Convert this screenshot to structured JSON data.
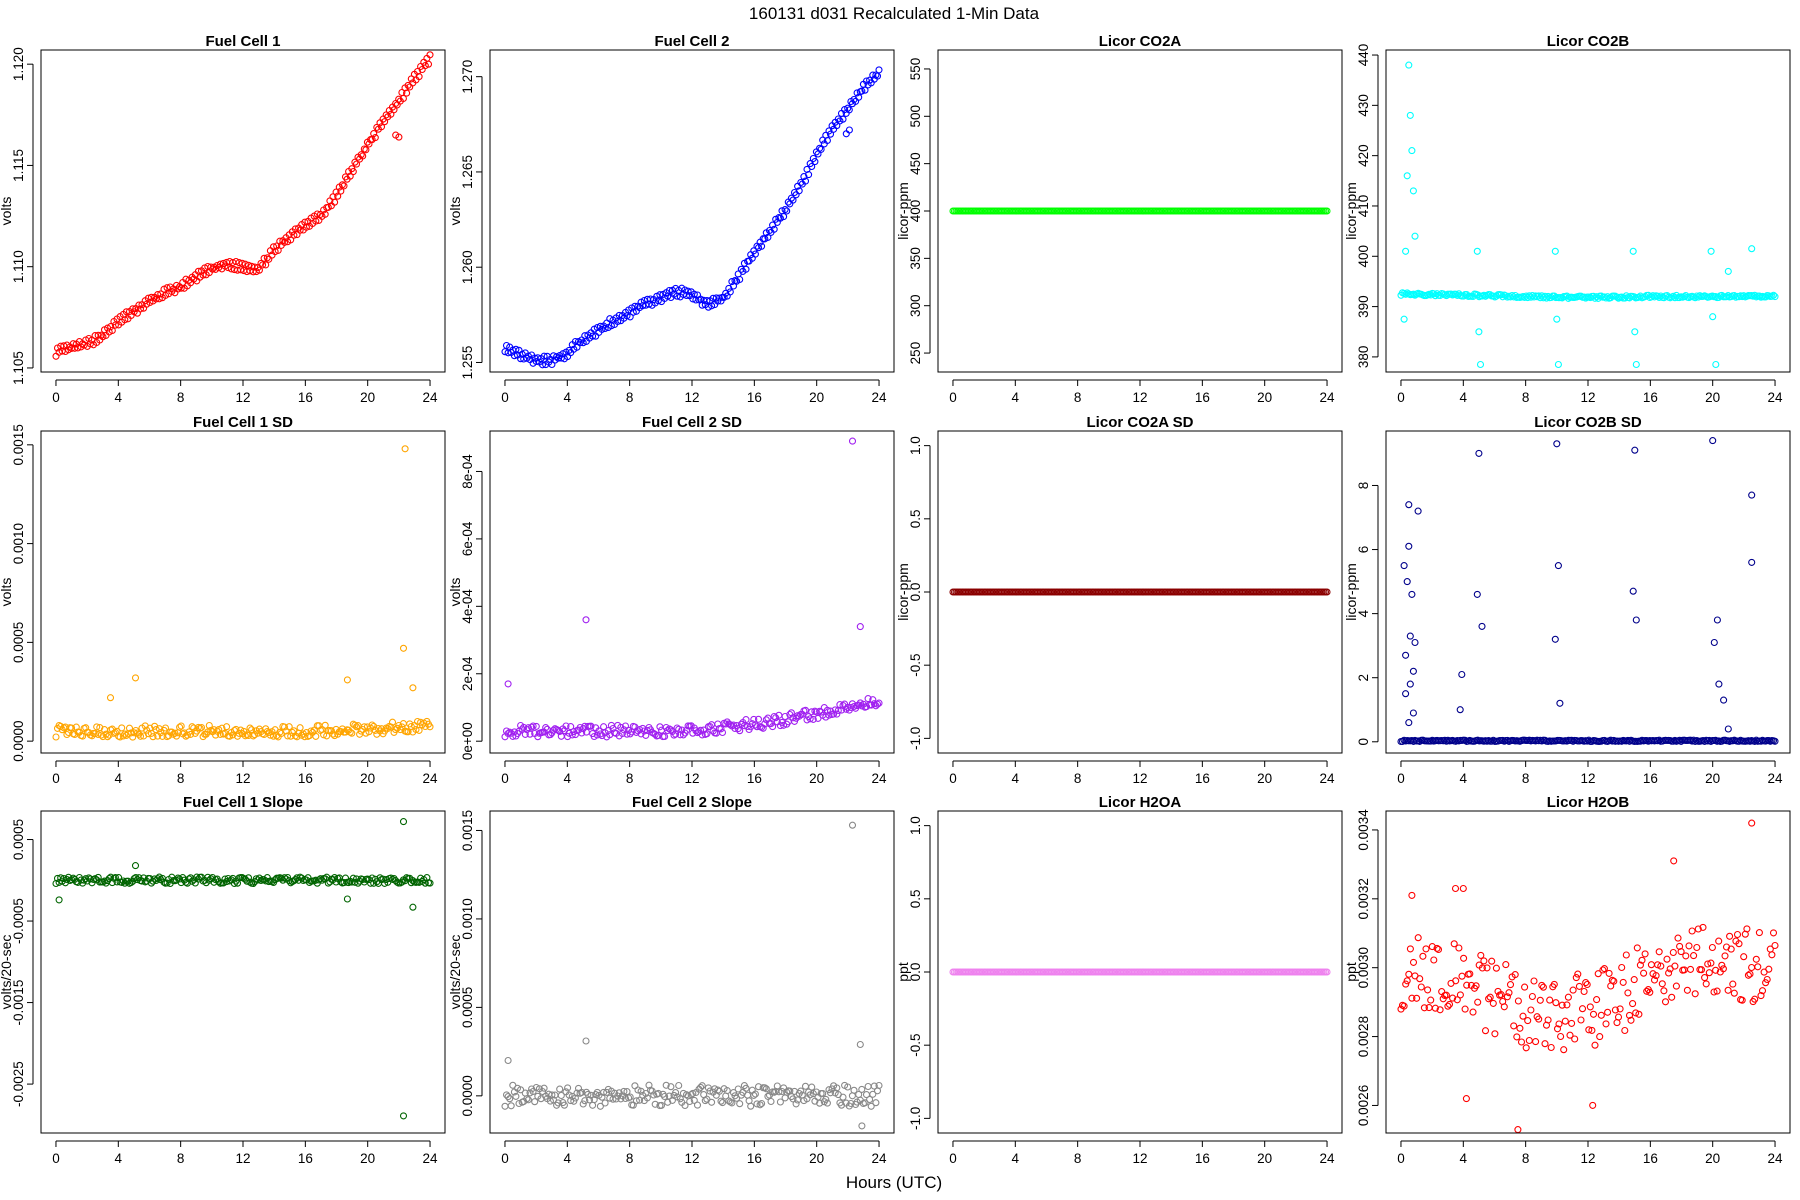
{
  "figure": {
    "suptitle": "160131   d031   Recalculated 1-Min Data",
    "xlabel": "Hours (UTC)"
  },
  "chart_data": [
    {
      "type": "scatter",
      "id": "fc1",
      "title": "Fuel Cell 1",
      "ylabel": "volts",
      "color": "#ff0000",
      "xlim": [
        -0.96,
        24.96
      ],
      "ylim": [
        1.1048,
        1.1207
      ],
      "xticks": [
        0,
        4,
        8,
        12,
        16,
        20,
        24
      ],
      "yticks": [
        1.105,
        1.11,
        1.115,
        1.12
      ],
      "ytick_labels": [
        "1.105",
        "1.110",
        "1.115",
        "1.120"
      ],
      "series": [
        {
          "x": [
            0,
            1,
            2,
            3,
            4,
            5,
            6,
            7,
            8,
            9,
            10,
            11,
            12,
            13,
            14,
            15,
            16,
            17,
            18,
            19,
            20,
            21,
            22,
            23,
            24
          ],
          "y": [
            1.1058,
            1.106,
            1.1062,
            1.1066,
            1.1073,
            1.1078,
            1.1083,
            1.1087,
            1.109,
            1.1095,
            1.1099,
            1.1101,
            1.11,
            1.1099,
            1.1108,
            1.1115,
            1.1121,
            1.1125,
            1.1135,
            1.1148,
            1.116,
            1.1172,
            1.1182,
            1.1193,
            1.1203
          ]
        }
      ],
      "markers": [
        {
          "x": 21.8,
          "y": 1.1165
        },
        {
          "x": 22.0,
          "y": 1.1164
        }
      ]
    },
    {
      "type": "scatter",
      "id": "fc2",
      "title": "Fuel Cell 2",
      "ylabel": "volts",
      "color": "#0000ff",
      "xlim": [
        -0.96,
        24.96
      ],
      "ylim": [
        1.2545,
        1.2714
      ],
      "xticks": [
        0,
        4,
        8,
        12,
        16,
        20,
        24
      ],
      "yticks": [
        1.255,
        1.26,
        1.265,
        1.27
      ],
      "ytick_labels": [
        "1.255",
        "1.260",
        "1.265",
        "1.270"
      ],
      "series": [
        {
          "x": [
            0,
            1,
            2,
            3,
            4,
            5,
            6,
            7,
            8,
            9,
            10,
            11,
            12,
            13,
            14,
            15,
            16,
            17,
            18,
            19,
            20,
            21,
            22,
            23,
            24
          ],
          "y": [
            1.2558,
            1.2554,
            1.2551,
            1.2551,
            1.2555,
            1.2562,
            1.2567,
            1.2572,
            1.2576,
            1.2581,
            1.2584,
            1.2587,
            1.2586,
            1.258,
            1.2584,
            1.2595,
            1.2608,
            1.2619,
            1.263,
            1.2643,
            1.2659,
            1.2673,
            1.2683,
            1.2694,
            1.2702
          ]
        }
      ],
      "markers": [
        {
          "x": 21.9,
          "y": 1.267
        },
        {
          "x": 22.1,
          "y": 1.2672
        }
      ]
    },
    {
      "type": "scatter",
      "id": "co2a",
      "title": "Licor CO2A",
      "ylabel": "licor-ppm",
      "color": "#00ff00",
      "xlim": [
        -0.96,
        24.96
      ],
      "ylim": [
        230,
        570
      ],
      "xticks": [
        0,
        4,
        8,
        12,
        16,
        20,
        24
      ],
      "yticks": [
        250,
        300,
        350,
        400,
        450,
        500,
        550
      ],
      "ytick_labels": [
        "250",
        "300",
        "350",
        "400",
        "450",
        "500",
        "550"
      ],
      "series": [
        {
          "x": [
            0,
            24
          ],
          "y": [
            400,
            400
          ]
        }
      ]
    },
    {
      "type": "scatter",
      "id": "co2b",
      "title": "Licor CO2B",
      "ylabel": "licor-ppm",
      "color": "#00ffff",
      "xlim": [
        -0.96,
        24.96
      ],
      "ylim": [
        377,
        441
      ],
      "xticks": [
        0,
        4,
        8,
        12,
        16,
        20,
        24
      ],
      "yticks": [
        380,
        390,
        400,
        410,
        420,
        430,
        440
      ],
      "ytick_labels": [
        "380",
        "390",
        "400",
        "410",
        "420",
        "430",
        "440"
      ],
      "series": [
        {
          "x": [
            0,
            4,
            8,
            12,
            16,
            20,
            24
          ],
          "y": [
            392.5,
            392.3,
            392.0,
            391.8,
            392.0,
            392.0,
            392.0
          ]
        }
      ],
      "markers": [
        {
          "x": 0.5,
          "y": 438
        },
        {
          "x": 0.6,
          "y": 428
        },
        {
          "x": 0.7,
          "y": 421
        },
        {
          "x": 0.4,
          "y": 416
        },
        {
          "x": 0.8,
          "y": 413
        },
        {
          "x": 0.3,
          "y": 401
        },
        {
          "x": 0.2,
          "y": 387.5
        },
        {
          "x": 0.9,
          "y": 404
        },
        {
          "x": 4.9,
          "y": 401
        },
        {
          "x": 5.0,
          "y": 385
        },
        {
          "x": 5.1,
          "y": 378.5
        },
        {
          "x": 9.9,
          "y": 401
        },
        {
          "x": 10.0,
          "y": 387.5
        },
        {
          "x": 10.1,
          "y": 378.5
        },
        {
          "x": 14.9,
          "y": 401
        },
        {
          "x": 15.0,
          "y": 385
        },
        {
          "x": 15.1,
          "y": 378.5
        },
        {
          "x": 19.9,
          "y": 401
        },
        {
          "x": 20.0,
          "y": 388
        },
        {
          "x": 20.2,
          "y": 378.5
        },
        {
          "x": 21.0,
          "y": 397
        },
        {
          "x": 22.5,
          "y": 401.5
        }
      ]
    },
    {
      "type": "scatter",
      "id": "fc1sd",
      "title": "Fuel Cell 1 SD",
      "ylabel": "volts",
      "color": "#ffa500",
      "xlim": [
        -0.96,
        24.96
      ],
      "ylim": [
        -6e-05,
        0.00157
      ],
      "xticks": [
        0,
        4,
        8,
        12,
        16,
        20,
        24
      ],
      "yticks": [
        0,
        0.0005,
        0.001,
        0.0015
      ],
      "ytick_labels": [
        "0.0000",
        "0.0005",
        "0.0010",
        "0.0015"
      ],
      "series": [
        {
          "x": [
            0,
            4,
            8,
            12,
            16,
            20,
            24
          ],
          "y": [
            5e-05,
            5e-05,
            5e-05,
            5e-05,
            5e-05,
            6e-05,
            8e-05
          ]
        }
      ],
      "markers": [
        {
          "x": 22.4,
          "y": 0.00148
        },
        {
          "x": 22.3,
          "y": 0.00047
        },
        {
          "x": 5.1,
          "y": 0.00032
        },
        {
          "x": 3.5,
          "y": 0.00022
        },
        {
          "x": 18.7,
          "y": 0.00031
        },
        {
          "x": 22.9,
          "y": 0.00027
        }
      ]
    },
    {
      "type": "scatter",
      "id": "fc2sd",
      "title": "Fuel Cell 2 SD",
      "ylabel": "volts",
      "color": "#a020f0",
      "xlim": [
        -0.96,
        24.96
      ],
      "ylim": [
        -3.5e-05,
        0.00092
      ],
      "xticks": [
        0,
        4,
        8,
        12,
        16,
        20,
        24
      ],
      "yticks": [
        0,
        0.0002,
        0.0004,
        0.0006,
        0.0008
      ],
      "ytick_labels": [
        "0e+00",
        "2e-04",
        "4e-04",
        "6e-04",
        "8e-04"
      ],
      "series": [
        {
          "x": [
            0,
            4,
            8,
            12,
            16,
            20,
            24
          ],
          "y": [
            3e-05,
            3e-05,
            3e-05,
            3e-05,
            5e-05,
            8e-05,
            0.00012
          ]
        }
      ],
      "markers": [
        {
          "x": 22.3,
          "y": 0.00089
        },
        {
          "x": 5.2,
          "y": 0.00036
        },
        {
          "x": 22.8,
          "y": 0.00034
        },
        {
          "x": 0.2,
          "y": 0.00017
        }
      ]
    },
    {
      "type": "scatter",
      "id": "co2asd",
      "title": "Licor CO2A SD",
      "ylabel": "licor-ppm",
      "color": "#8b0000",
      "xlim": [
        -0.96,
        24.96
      ],
      "ylim": [
        -1.1,
        1.1
      ],
      "xticks": [
        0,
        4,
        8,
        12,
        16,
        20,
        24
      ],
      "yticks": [
        -1,
        -0.5,
        0,
        0.5,
        1
      ],
      "ytick_labels": [
        "-1.0",
        "-0.5",
        "0.0",
        "0.5",
        "1.0"
      ],
      "series": [
        {
          "x": [
            0,
            24
          ],
          "y": [
            0,
            0
          ]
        }
      ]
    },
    {
      "type": "scatter",
      "id": "co2bsd",
      "title": "Licor CO2B SD",
      "ylabel": "licor-ppm",
      "color": "#00008b",
      "xlim": [
        -0.96,
        24.96
      ],
      "ylim": [
        -0.35,
        9.7
      ],
      "xticks": [
        0,
        4,
        8,
        12,
        16,
        20,
        24
      ],
      "yticks": [
        0,
        2,
        4,
        6,
        8
      ],
      "ytick_labels": [
        "0",
        "2",
        "4",
        "6",
        "8"
      ],
      "series": [
        {
          "x": [
            0,
            24
          ],
          "y": [
            0.03,
            0.03
          ]
        }
      ],
      "markers": [
        {
          "x": 0.5,
          "y": 7.4
        },
        {
          "x": 1.1,
          "y": 7.2
        },
        {
          "x": 0.5,
          "y": 6.1
        },
        {
          "x": 0.2,
          "y": 5.5
        },
        {
          "x": 0.4,
          "y": 5.0
        },
        {
          "x": 0.7,
          "y": 4.6
        },
        {
          "x": 0.6,
          "y": 3.3
        },
        {
          "x": 0.9,
          "y": 3.1
        },
        {
          "x": 0.3,
          "y": 2.7
        },
        {
          "x": 0.8,
          "y": 2.2
        },
        {
          "x": 0.6,
          "y": 1.8
        },
        {
          "x": 0.3,
          "y": 1.5
        },
        {
          "x": 0.8,
          "y": 0.9
        },
        {
          "x": 0.5,
          "y": 0.6
        },
        {
          "x": 3.9,
          "y": 2.1
        },
        {
          "x": 3.8,
          "y": 1.0
        },
        {
          "x": 5.0,
          "y": 9.0
        },
        {
          "x": 4.9,
          "y": 4.6
        },
        {
          "x": 5.2,
          "y": 3.6
        },
        {
          "x": 10.0,
          "y": 9.3
        },
        {
          "x": 10.1,
          "y": 5.5
        },
        {
          "x": 9.9,
          "y": 3.2
        },
        {
          "x": 10.2,
          "y": 1.2
        },
        {
          "x": 15.0,
          "y": 9.1
        },
        {
          "x": 14.9,
          "y": 4.7
        },
        {
          "x": 15.1,
          "y": 3.8
        },
        {
          "x": 20.0,
          "y": 9.4
        },
        {
          "x": 20.3,
          "y": 3.8
        },
        {
          "x": 20.1,
          "y": 3.1
        },
        {
          "x": 20.4,
          "y": 1.8
        },
        {
          "x": 20.7,
          "y": 1.3
        },
        {
          "x": 22.5,
          "y": 7.7
        },
        {
          "x": 22.5,
          "y": 5.6
        },
        {
          "x": 21.0,
          "y": 0.4
        }
      ]
    },
    {
      "type": "scatter",
      "id": "fc1slope",
      "title": "Fuel Cell 1 Slope",
      "ylabel": "volts/20-sec",
      "color": "#006400",
      "xlim": [
        -0.96,
        24.96
      ],
      "ylim": [
        -0.0031,
        0.00085
      ],
      "xticks": [
        0,
        4,
        8,
        12,
        16,
        20,
        24
      ],
      "yticks": [
        -0.0025,
        -0.0015,
        -0.0005,
        0.0005
      ],
      "ytick_labels": [
        "-0.0025",
        "-0.0015",
        "-0.0005",
        "0.0005"
      ],
      "series": [
        {
          "x": [
            0,
            24
          ],
          "y": [
            0,
            0
          ]
        }
      ],
      "markers": [
        {
          "x": 22.3,
          "y": 0.00072
        },
        {
          "x": 22.3,
          "y": -0.00289
        },
        {
          "x": 5.1,
          "y": 0.00018
        },
        {
          "x": 0.2,
          "y": -0.00024
        },
        {
          "x": 22.9,
          "y": -0.00033
        },
        {
          "x": 18.7,
          "y": -0.00023
        }
      ]
    },
    {
      "type": "scatter",
      "id": "fc2slope",
      "title": "Fuel Cell 2 Slope",
      "ylabel": "volts/20-sec",
      "color": "#888888",
      "xlim": [
        -0.96,
        24.96
      ],
      "ylim": [
        -0.00021,
        0.00161
      ],
      "xticks": [
        0,
        4,
        8,
        12,
        16,
        20,
        24
      ],
      "yticks": [
        0,
        0.0005,
        0.001,
        0.0015
      ],
      "ytick_labels": [
        "0.0000",
        "0.0005",
        "0.0010",
        "0.0015"
      ],
      "series": [
        {
          "x": [
            0,
            24
          ],
          "y": [
            0,
            0
          ]
        }
      ],
      "markers": [
        {
          "x": 22.3,
          "y": 0.00153
        },
        {
          "x": 5.2,
          "y": 0.00031
        },
        {
          "x": 22.8,
          "y": 0.00029
        },
        {
          "x": 0.2,
          "y": 0.0002
        },
        {
          "x": 22.9,
          "y": -0.00017
        }
      ]
    },
    {
      "type": "scatter",
      "id": "h2oa",
      "title": "Licor H2OA",
      "ylabel": "ppt",
      "color": "#ee82ee",
      "xlim": [
        -0.96,
        24.96
      ],
      "ylim": [
        -1.1,
        1.1
      ],
      "xticks": [
        0,
        4,
        8,
        12,
        16,
        20,
        24
      ],
      "yticks": [
        -1,
        -0.5,
        0,
        0.5,
        1
      ],
      "ytick_labels": [
        "-1.0",
        "-0.5",
        "0.0",
        "0.5",
        "1.0"
      ],
      "series": [
        {
          "x": [
            0,
            24
          ],
          "y": [
            0,
            0
          ]
        }
      ]
    },
    {
      "type": "scatter",
      "id": "h2ob",
      "title": "Licor H2OB",
      "ylabel": "ppt",
      "color": "#ff0000",
      "xlim": [
        -0.96,
        24.96
      ],
      "ylim": [
        0.00252,
        0.003455
      ],
      "xticks": [
        0,
        4,
        8,
        12,
        16,
        20,
        24
      ],
      "yticks": [
        0.0026,
        0.0028,
        0.003,
        0.0032,
        0.0034
      ],
      "ytick_labels": [
        "0.0026",
        "0.0028",
        "0.0030",
        "0.0032",
        "0.0034"
      ],
      "series": [
        {
          "x": [
            0,
            4,
            8,
            12,
            16,
            20,
            24
          ],
          "y": [
            0.00299,
            0.00296,
            0.00287,
            0.00287,
            0.00297,
            0.00302,
            0.00299
          ]
        }
      ],
      "markers": [
        {
          "x": 22.5,
          "y": 0.00342
        },
        {
          "x": 7.5,
          "y": 0.00253
        },
        {
          "x": 17.5,
          "y": 0.00331
        },
        {
          "x": 4.2,
          "y": 0.00262
        },
        {
          "x": 12.3,
          "y": 0.0026
        },
        {
          "x": 0.7,
          "y": 0.00321
        },
        {
          "x": 3.5,
          "y": 0.00323
        },
        {
          "x": 4.0,
          "y": 0.00323
        }
      ]
    }
  ]
}
